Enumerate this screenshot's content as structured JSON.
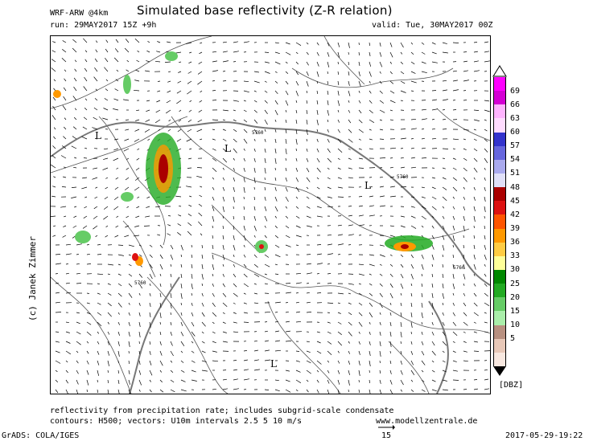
{
  "header": {
    "model": "WRF-ARW @4km",
    "title": "Simulated base reflectivity (Z-R relation)",
    "run": "run: 29MAY2017 15Z +9h",
    "valid": "valid: Tue, 30MAY2017 00Z"
  },
  "map": {
    "low_labels": [
      "L",
      "L",
      "L",
      "L",
      "L"
    ],
    "contour_labels": [
      "5760",
      "5760",
      "5760",
      "5760",
      "5760"
    ]
  },
  "legend": {
    "unit": "[DBZ]",
    "levels": [
      "69",
      "66",
      "63",
      "60",
      "57",
      "54",
      "51",
      "48",
      "45",
      "42",
      "39",
      "36",
      "33",
      "30",
      "25",
      "20",
      "15",
      "10",
      "5"
    ],
    "colors": [
      "#ff00ff",
      "#d400d4",
      "#ffb4ff",
      "#ffdcff",
      "#3333cc",
      "#6666dd",
      "#aaaaee",
      "#e0e0f8",
      "#aa0000",
      "#dd1111",
      "#ff5500",
      "#ff9900",
      "#ffcc44",
      "#ffff99",
      "#008800",
      "#22aa22",
      "#66cc66",
      "#aaeeaa",
      "#b89080",
      "#e8c8b8",
      "#f8e8e0"
    ]
  },
  "footer": {
    "line1": "reflectivity from precipitation rate; includes subgrid-scale condensate",
    "line2": "contours: H500; vectors: U10m intervals 2.5 5 10 m/s",
    "website": "www.modellzentrale.de",
    "grads": "GrADS: COLA/IGES",
    "vector_ref": "15",
    "timestamp": "2017-05-29-19:22",
    "credit": "(c) Janek Zimmer"
  }
}
